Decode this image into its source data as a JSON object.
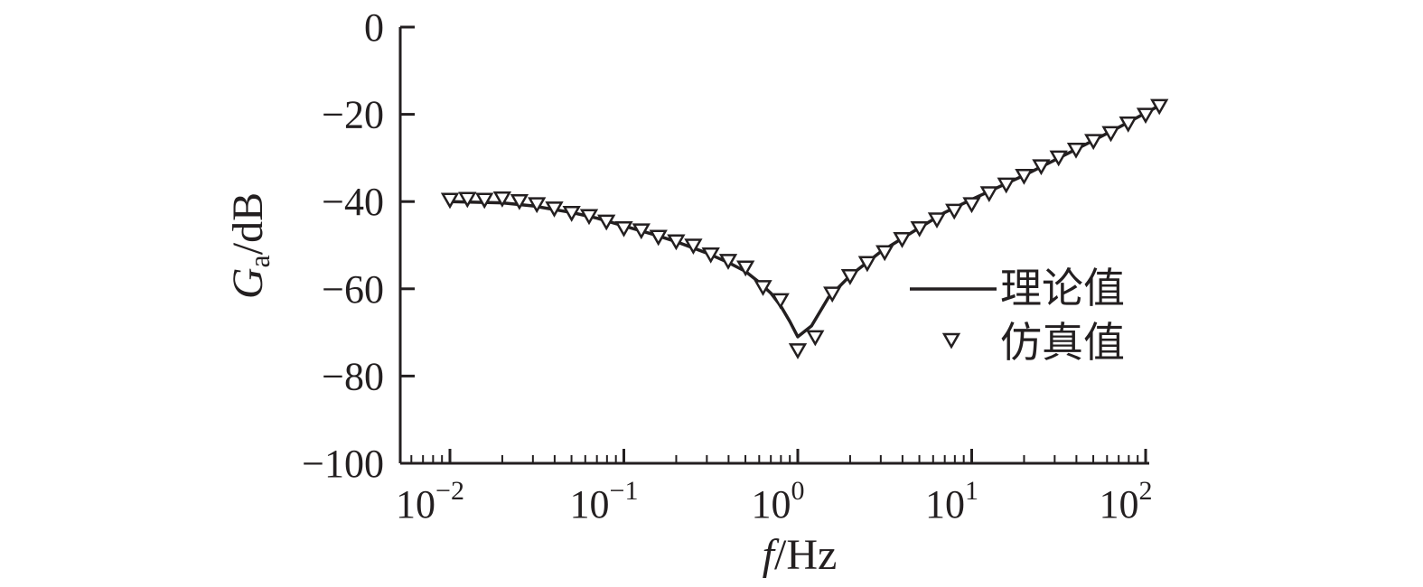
{
  "chart_data": {
    "type": "line",
    "xlabel": "f/Hz",
    "xlabel_italic": "f",
    "xlabel_unit": "/Hz",
    "ylabel_main": "G",
    "ylabel_sub": "a",
    "ylabel_unit": "/dB",
    "x_scale": "log",
    "xlim": [
      0.005,
      100
    ],
    "ylim": [
      -100,
      0
    ],
    "x_ticks": [
      {
        "base": "10",
        "exp": "−2"
      },
      {
        "base": "10",
        "exp": "−1"
      },
      {
        "base": "10",
        "exp": "0"
      },
      {
        "base": "10",
        "exp": "1"
      },
      {
        "base": "10",
        "exp": "2"
      }
    ],
    "y_ticks": [
      "0",
      "−20",
      "−40",
      "−60",
      "−80",
      "−100"
    ],
    "y_tick_values": [
      0,
      -20,
      -40,
      -60,
      -80,
      -100
    ],
    "grid": false,
    "legend_position": "right",
    "series": [
      {
        "name": "理论值",
        "style": "line",
        "x": [
          0.01,
          0.02,
          0.03,
          0.05,
          0.07,
          0.1,
          0.15,
          0.2,
          0.3,
          0.4,
          0.5,
          0.6,
          0.7,
          0.8,
          0.9,
          1.0,
          1.2,
          1.5,
          2,
          3,
          5,
          7,
          10,
          20,
          30,
          50,
          70,
          120
        ],
        "y": [
          -40,
          -40.3,
          -41,
          -42.5,
          -43.8,
          -45.6,
          -47.6,
          -49.2,
          -51.8,
          -54,
          -56,
          -58.5,
          -61,
          -64,
          -67.5,
          -71,
          -68.5,
          -62,
          -57,
          -51.5,
          -46,
          -42.5,
          -39.5,
          -34,
          -30.5,
          -26,
          -23,
          -18
        ]
      },
      {
        "name": "仿真值",
        "style": "marker",
        "marker": "triangle-down",
        "x": [
          0.01,
          0.0126,
          0.0158,
          0.02,
          0.0251,
          0.0316,
          0.0398,
          0.0501,
          0.0631,
          0.0794,
          0.1,
          0.126,
          0.158,
          0.2,
          0.251,
          0.316,
          0.398,
          0.501,
          0.631,
          0.794,
          1.0,
          1.26,
          1.58,
          2.0,
          2.51,
          3.16,
          3.98,
          5.01,
          6.31,
          7.94,
          10,
          12.6,
          15.8,
          20,
          25.1,
          31.6,
          39.8,
          50.1,
          63.1,
          79.4,
          100,
          120
        ],
        "y": [
          -39.5,
          -39.3,
          -39.5,
          -39.2,
          -39.8,
          -40.5,
          -41.5,
          -42.5,
          -43.2,
          -44.5,
          -46,
          -46.5,
          -48,
          -49,
          -50,
          -52,
          -53.5,
          -55,
          -59.5,
          -62.5,
          -74,
          -71,
          -61,
          -57,
          -54,
          -51.5,
          -48.5,
          -46,
          -44,
          -42,
          -40.5,
          -38,
          -36,
          -34,
          -31.8,
          -29.8,
          -28,
          -26,
          -24.2,
          -22,
          -20,
          -18
        ]
      }
    ]
  }
}
